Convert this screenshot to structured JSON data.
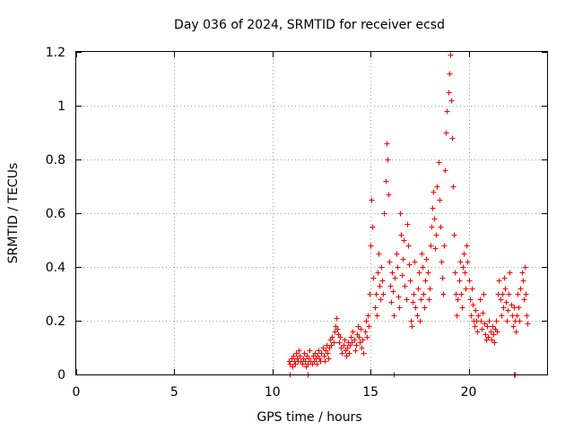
{
  "chart_data": {
    "type": "scatter",
    "title": "Day 036 of 2024, SRMTID for receiver ecsd",
    "xlabel": "GPS time / hours",
    "ylabel": "SRMTID / TECUs",
    "xlim": [
      0,
      24
    ],
    "ylim": [
      0,
      1.2
    ],
    "xticks": [
      {
        "value": 0,
        "label": "0"
      },
      {
        "value": 5,
        "label": "5"
      },
      {
        "value": 10,
        "label": "10"
      },
      {
        "value": 15,
        "label": "15"
      },
      {
        "value": 20,
        "label": "20"
      }
    ],
    "yticks": [
      {
        "value": 0,
        "label": "0"
      },
      {
        "value": 0.2,
        "label": "0.2"
      },
      {
        "value": 0.4,
        "label": "0.4"
      },
      {
        "value": 0.6,
        "label": "0.6"
      },
      {
        "value": 0.8,
        "label": "0.8"
      },
      {
        "value": 1.0,
        "label": "1"
      },
      {
        "value": 1.2,
        "label": "1.2"
      }
    ],
    "grid": true,
    "series": [
      {
        "name": "SRMTID",
        "color": "#ff0000",
        "marker": "plus",
        "points": [
          [
            10.85,
            0.05
          ],
          [
            10.9,
            0.04
          ],
          [
            10.95,
            0.06
          ],
          [
            11.0,
            0.03
          ],
          [
            11.05,
            0.07
          ],
          [
            11.1,
            0.05
          ],
          [
            11.15,
            0.04
          ],
          [
            11.2,
            0.08
          ],
          [
            11.25,
            0.06
          ],
          [
            11.3,
            0.05
          ],
          [
            11.35,
            0.09
          ],
          [
            11.4,
            0.07
          ],
          [
            11.45,
            0.05
          ],
          [
            11.5,
            0.04
          ],
          [
            11.55,
            0.06
          ],
          [
            11.6,
            0.08
          ],
          [
            11.65,
            0.05
          ],
          [
            11.7,
            0.03
          ],
          [
            11.75,
            0.07
          ],
          [
            11.8,
            0.04
          ],
          [
            11.85,
            0.06
          ],
          [
            11.9,
            0.09
          ],
          [
            11.95,
            0.05
          ],
          [
            12.0,
            0.04
          ],
          [
            12.05,
            0.07
          ],
          [
            12.1,
            0.05
          ],
          [
            12.15,
            0.08
          ],
          [
            12.2,
            0.06
          ],
          [
            12.25,
            0.04
          ],
          [
            12.3,
            0.07
          ],
          [
            12.35,
            0.09
          ],
          [
            12.4,
            0.06
          ],
          [
            12.45,
            0.05
          ],
          [
            12.5,
            0.08
          ],
          [
            12.55,
            0.1
          ],
          [
            12.6,
            0.07
          ],
          [
            12.65,
            0.05
          ],
          [
            12.7,
            0.09
          ],
          [
            12.75,
            0.11
          ],
          [
            12.8,
            0.08
          ],
          [
            12.85,
            0.06
          ],
          [
            12.9,
            0.1
          ],
          [
            12.95,
            0.13
          ],
          [
            13.0,
            0.11
          ],
          [
            13.05,
            0.14
          ],
          [
            13.1,
            0.12
          ],
          [
            13.15,
            0.16
          ],
          [
            13.2,
            0.18
          ],
          [
            13.25,
            0.21
          ],
          [
            13.3,
            0.17
          ],
          [
            13.35,
            0.15
          ],
          [
            13.4,
            0.12
          ],
          [
            13.45,
            0.14
          ],
          [
            13.5,
            0.1
          ],
          [
            13.55,
            0.08
          ],
          [
            13.6,
            0.11
          ],
          [
            13.65,
            0.13
          ],
          [
            13.7,
            0.09
          ],
          [
            13.75,
            0.07
          ],
          [
            13.8,
            0.1
          ],
          [
            13.85,
            0.12
          ],
          [
            13.9,
            0.08
          ],
          [
            13.95,
            0.11
          ],
          [
            14.0,
            0.14
          ],
          [
            14.05,
            0.12
          ],
          [
            14.1,
            0.16
          ],
          [
            14.15,
            0.13
          ],
          [
            14.2,
            0.09
          ],
          [
            14.25,
            0.11
          ],
          [
            14.3,
            0.15
          ],
          [
            14.35,
            0.18
          ],
          [
            14.4,
            0.14
          ],
          [
            14.45,
            0.12
          ],
          [
            14.5,
            0.17
          ],
          [
            14.55,
            0.1
          ],
          [
            14.6,
            0.13
          ],
          [
            14.65,
            0.08
          ],
          [
            14.7,
            0.16
          ],
          [
            14.75,
            0.2
          ],
          [
            14.8,
            0.14
          ],
          [
            14.85,
            0.22
          ],
          [
            14.9,
            0.18
          ],
          [
            14.95,
            0.3
          ],
          [
            15.0,
            0.48
          ],
          [
            15.05,
            0.65
          ],
          [
            15.1,
            0.55
          ],
          [
            15.15,
            0.36
          ],
          [
            15.2,
            0.25
          ],
          [
            15.25,
            0.3
          ],
          [
            15.3,
            0.22
          ],
          [
            15.35,
            0.38
          ],
          [
            15.4,
            0.45
          ],
          [
            15.45,
            0.33
          ],
          [
            15.5,
            0.28
          ],
          [
            15.55,
            0.4
          ],
          [
            15.6,
            0.35
          ],
          [
            15.65,
            0.3
          ],
          [
            15.7,
            0.6
          ],
          [
            15.75,
            0.72
          ],
          [
            15.8,
            0.86
          ],
          [
            15.85,
            0.8
          ],
          [
            15.9,
            0.67
          ],
          [
            15.95,
            0.42
          ],
          [
            16.0,
            0.33
          ],
          [
            16.05,
            0.27
          ],
          [
            16.1,
            0.38
          ],
          [
            16.15,
            0.31
          ],
          [
            16.2,
            0.22
          ],
          [
            16.25,
            0.36
          ],
          [
            16.3,
            0.45
          ],
          [
            16.35,
            0.4
          ],
          [
            16.4,
            0.29
          ],
          [
            16.45,
            0.25
          ],
          [
            16.5,
            0.6
          ],
          [
            16.55,
            0.52
          ],
          [
            16.6,
            0.37
          ],
          [
            16.65,
            0.43
          ],
          [
            16.7,
            0.5
          ],
          [
            16.75,
            0.33
          ],
          [
            16.8,
            0.28
          ],
          [
            16.85,
            0.56
          ],
          [
            16.9,
            0.48
          ],
          [
            16.95,
            0.41
          ],
          [
            17.0,
            0.35
          ],
          [
            17.05,
            0.2
          ],
          [
            17.1,
            0.18
          ],
          [
            17.15,
            0.27
          ],
          [
            17.2,
            0.3
          ],
          [
            17.25,
            0.42
          ],
          [
            17.3,
            0.25
          ],
          [
            17.35,
            0.22
          ],
          [
            17.4,
            0.32
          ],
          [
            17.45,
            0.38
          ],
          [
            17.5,
            0.2
          ],
          [
            17.55,
            0.28
          ],
          [
            17.6,
            0.45
          ],
          [
            17.65,
            0.4
          ],
          [
            17.7,
            0.3
          ],
          [
            17.75,
            0.25
          ],
          [
            17.8,
            0.35
          ],
          [
            17.85,
            0.43
          ],
          [
            17.9,
            0.38
          ],
          [
            17.95,
            0.28
          ],
          [
            18.0,
            0.32
          ],
          [
            18.05,
            0.48
          ],
          [
            18.1,
            0.55
          ],
          [
            18.15,
            0.62
          ],
          [
            18.2,
            0.68
          ],
          [
            18.25,
            0.58
          ],
          [
            18.3,
            0.47
          ],
          [
            18.35,
            0.52
          ],
          [
            18.4,
            0.7
          ],
          [
            18.45,
            0.79
          ],
          [
            18.5,
            0.65
          ],
          [
            18.55,
            0.55
          ],
          [
            18.6,
            0.42
          ],
          [
            18.65,
            0.36
          ],
          [
            18.7,
            0.3
          ],
          [
            18.75,
            0.48
          ],
          [
            18.8,
            0.76
          ],
          [
            18.85,
            0.9
          ],
          [
            18.9,
            0.98
          ],
          [
            18.95,
            1.05
          ],
          [
            19.0,
            1.12
          ],
          [
            19.05,
            1.19
          ],
          [
            19.1,
            1.02
          ],
          [
            19.15,
            0.88
          ],
          [
            19.2,
            0.7
          ],
          [
            19.25,
            0.52
          ],
          [
            19.3,
            0.38
          ],
          [
            19.35,
            0.3
          ],
          [
            19.4,
            0.22
          ],
          [
            19.45,
            0.28
          ],
          [
            19.5,
            0.35
          ],
          [
            19.55,
            0.42
          ],
          [
            19.6,
            0.3
          ],
          [
            19.65,
            0.25
          ],
          [
            19.7,
            0.4
          ],
          [
            19.75,
            0.45
          ],
          [
            19.8,
            0.38
          ],
          [
            19.85,
            0.32
          ],
          [
            19.9,
            0.48
          ],
          [
            19.95,
            0.42
          ],
          [
            20.0,
            0.35
          ],
          [
            20.05,
            0.28
          ],
          [
            20.1,
            0.22
          ],
          [
            20.15,
            0.32
          ],
          [
            20.2,
            0.26
          ],
          [
            20.25,
            0.2
          ],
          [
            20.3,
            0.18
          ],
          [
            20.35,
            0.24
          ],
          [
            20.4,
            0.2
          ],
          [
            20.45,
            0.16
          ],
          [
            20.5,
            0.22
          ],
          [
            20.55,
            0.28
          ],
          [
            20.6,
            0.2
          ],
          [
            20.65,
            0.17
          ],
          [
            20.7,
            0.23
          ],
          [
            20.75,
            0.3
          ],
          [
            20.8,
            0.19
          ],
          [
            20.85,
            0.15
          ],
          [
            20.9,
            0.13
          ],
          [
            20.95,
            0.18
          ],
          [
            21.0,
            0.14
          ],
          [
            21.05,
            0.2
          ],
          [
            21.1,
            0.16
          ],
          [
            21.15,
            0.13
          ],
          [
            21.2,
            0.18
          ],
          [
            21.25,
            0.15
          ],
          [
            21.3,
            0.12
          ],
          [
            21.35,
            0.17
          ],
          [
            21.4,
            0.2
          ],
          [
            21.45,
            0.16
          ],
          [
            21.5,
            0.3
          ],
          [
            21.55,
            0.35
          ],
          [
            21.6,
            0.28
          ],
          [
            21.65,
            0.22
          ],
          [
            21.7,
            0.3
          ],
          [
            21.75,
            0.25
          ],
          [
            21.8,
            0.36
          ],
          [
            21.85,
            0.32
          ],
          [
            21.9,
            0.27
          ],
          [
            21.95,
            0.2
          ],
          [
            22.0,
            0.24
          ],
          [
            22.05,
            0.3
          ],
          [
            22.1,
            0.38
          ],
          [
            22.15,
            0.26
          ],
          [
            22.2,
            0.22
          ],
          [
            22.25,
            0.18
          ],
          [
            22.3,
            0.25
          ],
          [
            22.35,
            0.2
          ],
          [
            22.4,
            0.16
          ],
          [
            22.45,
            0.22
          ],
          [
            22.5,
            0.3
          ],
          [
            22.55,
            0.25
          ],
          [
            22.6,
            0.2
          ],
          [
            22.65,
            0.32
          ],
          [
            22.7,
            0.38
          ],
          [
            22.75,
            0.35
          ],
          [
            22.8,
            0.28
          ],
          [
            22.85,
            0.4
          ],
          [
            22.9,
            0.3
          ],
          [
            22.95,
            0.22
          ],
          [
            23.0,
            0.19
          ],
          [
            10.9,
            0.0
          ],
          [
            11.8,
            0.0
          ],
          [
            16.2,
            0.0
          ],
          [
            22.3,
            0.0
          ],
          [
            22.35,
            0.0
          ]
        ]
      }
    ]
  }
}
